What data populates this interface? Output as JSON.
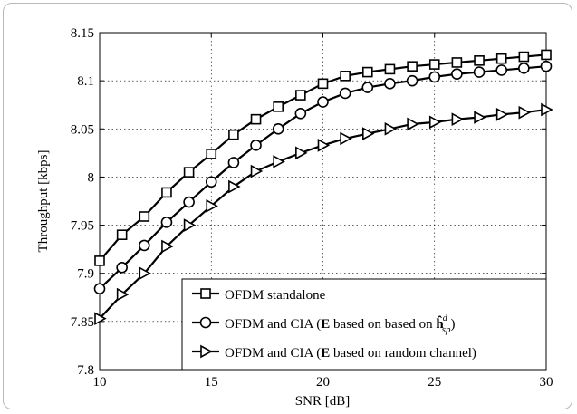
{
  "chart_data": {
    "type": "line",
    "xlabel": "SNR [dB]",
    "ylabel": "Throughput [kbps]",
    "xlim": [
      10,
      30
    ],
    "ylim": [
      7.8,
      8.15
    ],
    "xticks": [
      "10",
      "15",
      "20",
      "25",
      "30"
    ],
    "yticks": [
      "7.8",
      "7.85",
      "7.9",
      "7.95",
      "8",
      "8.05",
      "8.1",
      "8.15"
    ],
    "grid": true,
    "legend_position": "bottom-right",
    "x": [
      10,
      11,
      12,
      13,
      14,
      15,
      16,
      17,
      18,
      19,
      20,
      21,
      22,
      23,
      24,
      25,
      26,
      27,
      28,
      29,
      30
    ],
    "series": [
      {
        "name": "OFDM standalone",
        "marker": "square",
        "values": [
          7.913,
          7.94,
          7.959,
          7.984,
          8.005,
          8.024,
          8.044,
          8.06,
          8.073,
          8.085,
          8.097,
          8.105,
          8.109,
          8.112,
          8.115,
          8.117,
          8.119,
          8.121,
          8.123,
          8.125,
          8.127
        ]
      },
      {
        "name": "OFDM and CIA (E based on based on ĥ^d_sp)",
        "marker": "circle",
        "values": [
          7.884,
          7.906,
          7.929,
          7.953,
          7.974,
          7.995,
          8.015,
          8.033,
          8.05,
          8.066,
          8.078,
          8.087,
          8.093,
          8.097,
          8.1,
          8.104,
          8.107,
          8.109,
          8.111,
          8.113,
          8.115
        ]
      },
      {
        "name": "OFDM and CIA (E based on random channel)",
        "marker": "triangle-right",
        "values": [
          7.853,
          7.878,
          7.9,
          7.928,
          7.95,
          7.97,
          7.99,
          8.006,
          8.016,
          8.025,
          8.033,
          8.04,
          8.045,
          8.05,
          8.055,
          8.057,
          8.06,
          8.062,
          8.065,
          8.067,
          8.07
        ]
      }
    ]
  },
  "legend": {
    "entry1": "OFDM standalone",
    "entry2_pre": "OFDM and CIA (",
    "entry2_bold": "E",
    "entry2_mid": " based on based on ",
    "entry2_sym": "ĥ",
    "entry2_sup": "d",
    "entry2_sub": "sp",
    "entry2_post": ")",
    "entry3_pre": "OFDM and CIA (",
    "entry3_bold": "E",
    "entry3_post": " based on random channel)"
  }
}
